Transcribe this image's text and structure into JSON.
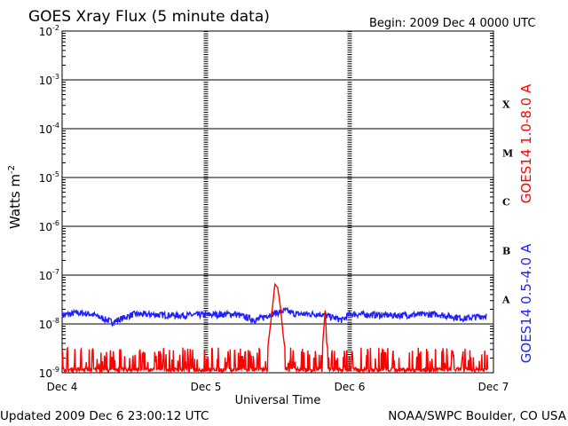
{
  "chart_data": {
    "type": "line",
    "title": "GOES Xray Flux (5 minute data)",
    "begin": "Begin:  2009 Dec 4 0000 UTC",
    "ylabel": "Watts m",
    "ylabel_sup": "-2",
    "xlabel": "Universal Time",
    "updated": "Updated 2009 Dec  6 23:00:12 UTC",
    "credit": "NOAA/SWPC Boulder, CO USA",
    "y_scale": "log",
    "ylim": [
      1e-09,
      0.01
    ],
    "y_ticks": [
      {
        "base": "10",
        "exp": "-2"
      },
      {
        "base": "10",
        "exp": "-3"
      },
      {
        "base": "10",
        "exp": "-4"
      },
      {
        "base": "10",
        "exp": "-5"
      },
      {
        "base": "10",
        "exp": "-6"
      },
      {
        "base": "10",
        "exp": "-7"
      },
      {
        "base": "10",
        "exp": "-8"
      },
      {
        "base": "10",
        "exp": "-9"
      }
    ],
    "x_ticks": [
      "Dec 4",
      "Dec 5",
      "Dec 6",
      "Dec 7"
    ],
    "x_unit": "days since 2009 Dec 4 0000 UTC",
    "xlim": [
      0,
      3
    ],
    "flare_classes": [
      "X",
      "M",
      "C",
      "B",
      "A"
    ],
    "grid": true,
    "series": [
      {
        "name": "GOES14 0.5-4.0 A",
        "color": "#1f1fff",
        "typical": 1.6e-08,
        "points": [
          [
            0.0,
            1.5e-08
          ],
          [
            0.1,
            1.7e-08
          ],
          [
            0.2,
            1.6e-08
          ],
          [
            0.35,
            1.1e-08
          ],
          [
            0.5,
            1.6e-08
          ],
          [
            0.8,
            1.5e-08
          ],
          [
            1.2,
            1.6e-08
          ],
          [
            1.35,
            1.2e-08
          ],
          [
            1.45,
            1.6e-08
          ],
          [
            1.5,
            1.7e-08
          ],
          [
            1.55,
            1.9e-08
          ],
          [
            1.62,
            1.6e-08
          ],
          [
            1.8,
            1.6e-08
          ],
          [
            1.95,
            1.2e-08
          ],
          [
            2.0,
            1.6e-08
          ],
          [
            2.3,
            1.5e-08
          ],
          [
            2.6,
            1.6e-08
          ],
          [
            2.8,
            1.3e-08
          ],
          [
            2.95,
            1.5e-08
          ]
        ]
      },
      {
        "name": "GOES14 1.0-8.0 A",
        "color": "#ff0000",
        "typical": 1.1e-09,
        "points": [
          [
            0.0,
            1.1e-09
          ],
          [
            0.25,
            1.4e-09
          ],
          [
            0.45,
            1.8e-09
          ],
          [
            0.5,
            1.2e-09
          ],
          [
            0.6,
            1.3e-09
          ],
          [
            0.9,
            1.5e-09
          ],
          [
            1.0,
            1.2e-09
          ],
          [
            1.2,
            1.6e-09
          ],
          [
            1.3,
            1.1e-09
          ],
          [
            1.38,
            2.8e-09
          ],
          [
            1.42,
            1.8e-09
          ],
          [
            1.46,
            1.8e-08
          ],
          [
            1.48,
            6.5e-08
          ],
          [
            1.5,
            5.5e-08
          ],
          [
            1.52,
            2e-08
          ],
          [
            1.54,
            5e-09
          ],
          [
            1.56,
            2e-09
          ],
          [
            1.6,
            1.3e-09
          ],
          [
            1.75,
            1.5e-09
          ],
          [
            1.8,
            1.2e-09
          ],
          [
            1.83,
            2e-08
          ],
          [
            1.84,
            4e-09
          ],
          [
            1.87,
            1.5e-09
          ],
          [
            2.1,
            1.3e-09
          ],
          [
            2.3,
            2e-09
          ],
          [
            2.5,
            1.2e-09
          ],
          [
            2.7,
            1.8e-09
          ],
          [
            2.9,
            2.2e-09
          ],
          [
            2.96,
            1.3e-09
          ]
        ]
      }
    ]
  }
}
